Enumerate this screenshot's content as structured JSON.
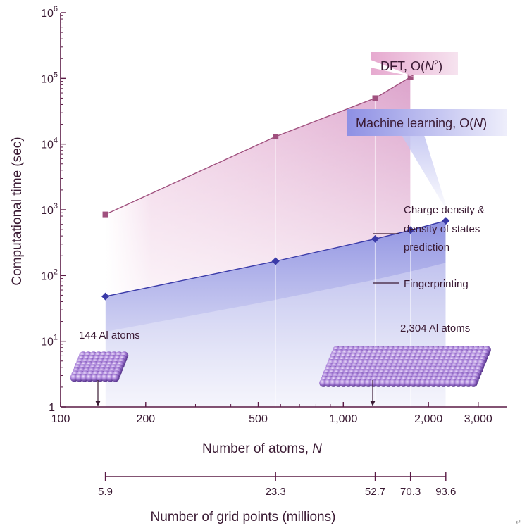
{
  "chart_data": {
    "type": "line",
    "x_scale": "log",
    "y_scale": "log",
    "xlabel": "Number of atoms,",
    "xlabel_var": "N",
    "ylabel": "Computational time (sec)",
    "xlim": [
      100,
      3800
    ],
    "ylim": [
      1,
      1000000
    ],
    "x_ticks": [
      {
        "value": 100,
        "label": "100"
      },
      {
        "value": 200,
        "label": "200"
      },
      {
        "value": 500,
        "label": "500"
      },
      {
        "value": 1000,
        "label": "1,000"
      },
      {
        "value": 2000,
        "label": "2,000"
      },
      {
        "value": 3000,
        "label": "3,000"
      }
    ],
    "y_ticks": [
      {
        "value": 1,
        "base": "1",
        "exp": ""
      },
      {
        "value": 10,
        "base": "10",
        "exp": "1"
      },
      {
        "value": 100,
        "base": "10",
        "exp": "2"
      },
      {
        "value": 1000,
        "base": "10",
        "exp": "3"
      },
      {
        "value": 10000,
        "base": "10",
        "exp": "4"
      },
      {
        "value": 100000,
        "base": "10",
        "exp": "5"
      },
      {
        "value": 1000000,
        "base": "10",
        "exp": "6"
      }
    ],
    "series": [
      {
        "name": "DFT, O(N2)",
        "label_prefix": "DFT, O(",
        "label_var": "N",
        "label_sup": "2",
        "label_suffix": ")",
        "color": "#a0507e",
        "marker": "square",
        "x": [
          144,
          576,
          1296,
          1728
        ],
        "y": [
          850,
          13000,
          50000,
          105000
        ]
      },
      {
        "name": "Machine learning, O(N)",
        "label_prefix": "Machine learning, O(",
        "label_var": "N",
        "label_suffix": ")",
        "color": "#3a3aa8",
        "marker": "diamond",
        "x": [
          144,
          576,
          1296,
          1728,
          2304
        ],
        "y": [
          48,
          165,
          360,
          490,
          680
        ]
      }
    ],
    "annotations": {
      "charge_density": [
        "Charge density &",
        "density of states",
        "prediction"
      ],
      "fingerprinting": "Fingerprinting",
      "small_cell": "144 Al atoms",
      "large_cell": "2,304 Al atoms"
    },
    "secondary_axis": {
      "label": "Number of grid points (millions)",
      "ticks": [
        {
          "atoms": 144,
          "label": "5.9"
        },
        {
          "atoms": 576,
          "label": "23.3"
        },
        {
          "atoms": 1296,
          "label": "52.7"
        },
        {
          "atoms": 1728,
          "label": "70.3"
        },
        {
          "atoms": 2304,
          "label": "93.6"
        }
      ]
    },
    "colors": {
      "frame": "#5a1a45",
      "dft_fill": "#d98fbd",
      "ml_fill": "#6c6fd6",
      "atom": "#8a5fc0"
    }
  },
  "corner_mark": "↵"
}
